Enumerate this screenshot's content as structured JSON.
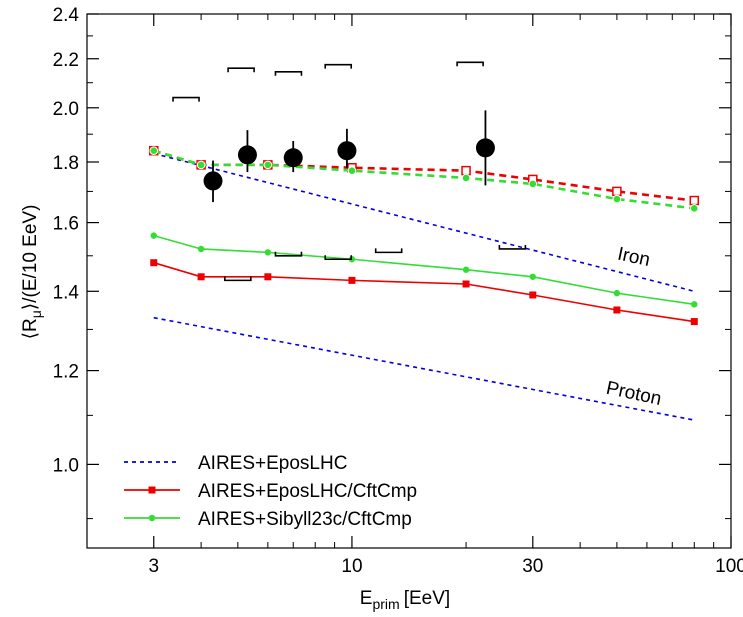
{
  "chart_data": {
    "type": "line",
    "title": "",
    "xlabel": "E",
    "xlabel_sub": "prim",
    "xlabel_unit": "[EeV]",
    "ylabel": "⟨R",
    "ylabel_sub": "μ",
    "ylabel_rest": "⟩/(E/10 EeV)",
    "x_scale": "log",
    "y_scale": "log",
    "xlim": [
      2,
      100
    ],
    "ylim": [
      0.85,
      2.4
    ],
    "x_ticks": [
      3,
      10,
      30,
      100
    ],
    "x_tick_labels": [
      "3",
      "10",
      "30",
      "100"
    ],
    "y_ticks": [
      1.0,
      1.2,
      1.4,
      1.6,
      1.8,
      2.0,
      2.2,
      2.4
    ],
    "y_tick_labels": [
      "1.0",
      "1.2",
      "1.4",
      "1.6",
      "1.8",
      "2.0",
      "2.2",
      "2.4"
    ],
    "legend_position": "bottom-left",
    "series": [
      {
        "name": "AIRES+EposLHC",
        "style": "dashed",
        "color": "#0000dd",
        "marker": "none",
        "label": "Iron",
        "x": [
          3,
          80
        ],
        "y": [
          1.83,
          1.4
        ]
      },
      {
        "name": "",
        "style": "dashed",
        "color": "#0000dd",
        "marker": "none",
        "label": "Proton",
        "x": [
          3,
          80
        ],
        "y": [
          1.33,
          1.09
        ]
      },
      {
        "name": "AIRES+EposLHC/CftCmp",
        "style": "solid",
        "color": "#ee0000",
        "marker": "square",
        "x": [
          3,
          4,
          6,
          10,
          20,
          30,
          50,
          80
        ],
        "y": [
          1.48,
          1.44,
          1.44,
          1.43,
          1.42,
          1.39,
          1.35,
          1.32
        ]
      },
      {
        "name": "AIRES+Sibyll23c/CftCmp",
        "style": "solid",
        "color": "#33dd33",
        "marker": "circle",
        "x": [
          3,
          4,
          6,
          10,
          20,
          30,
          50,
          80
        ],
        "y": [
          1.56,
          1.52,
          1.51,
          1.49,
          1.46,
          1.44,
          1.395,
          1.365
        ]
      },
      {
        "name": "",
        "style": "dashed-bold",
        "color": "#ee0000",
        "marker": "open-square",
        "x": [
          3,
          4,
          6,
          10,
          20,
          30,
          50,
          80
        ],
        "y": [
          1.84,
          1.79,
          1.79,
          1.78,
          1.77,
          1.74,
          1.7,
          1.67
        ]
      },
      {
        "name": "",
        "style": "dashed-bold",
        "color": "#33dd33",
        "marker": "open-circle",
        "x": [
          3,
          4,
          6,
          10,
          20,
          30,
          50,
          80
        ],
        "y": [
          1.84,
          1.79,
          1.79,
          1.77,
          1.745,
          1.725,
          1.675,
          1.645
        ]
      },
      {
        "name": "",
        "style": "points",
        "color": "#000000",
        "marker": "big-circle",
        "x": [
          4.3,
          5.3,
          7.0,
          9.7,
          22.5
        ],
        "y": [
          1.735,
          1.825,
          1.815,
          1.84,
          1.85
        ],
        "err_low": [
          0.07,
          0.06,
          0.05,
          0.06,
          0.13
        ],
        "err_high": [
          0.07,
          0.09,
          0.06,
          0.08,
          0.14
        ]
      }
    ],
    "systematic_brackets_upper": [
      {
        "x": 3.65,
        "y": 2.04
      },
      {
        "x": 5.1,
        "y": 2.16
      },
      {
        "x": 6.8,
        "y": 2.145
      },
      {
        "x": 9.2,
        "y": 2.175
      },
      {
        "x": 20.5,
        "y": 2.185
      }
    ],
    "systematic_brackets_lower": [
      {
        "x": 5.0,
        "y": 1.43
      },
      {
        "x": 6.8,
        "y": 1.5
      },
      {
        "x": 9.2,
        "y": 1.49
      },
      {
        "x": 12.5,
        "y": 1.51
      },
      {
        "x": 26.5,
        "y": 1.52
      }
    ],
    "annotations": [
      {
        "text": "Iron",
        "x": 55,
        "y": 1.48,
        "rotate": 12
      },
      {
        "text": "Proton",
        "x": 55,
        "y": 1.135,
        "rotate": 12
      }
    ]
  }
}
